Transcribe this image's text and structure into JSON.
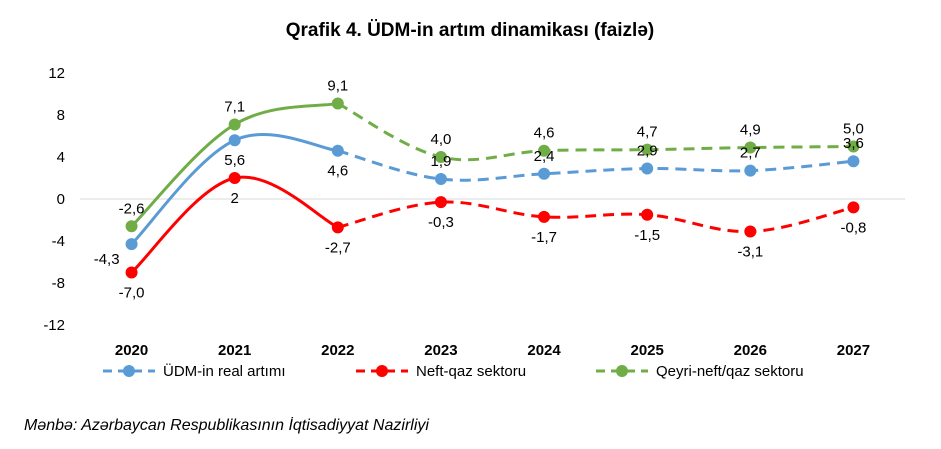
{
  "chart_data": {
    "type": "line",
    "title": "Qrafik 4. ÜDM-in artım dinamikası (faizlə)",
    "categories": [
      "2020",
      "2021",
      "2022",
      "2023",
      "2024",
      "2025",
      "2026",
      "2027"
    ],
    "ylim": [
      -12,
      12
    ],
    "yticks": [
      12,
      8,
      4,
      0,
      -4,
      -8,
      -12
    ],
    "ytick_labels": [
      "12",
      "8",
      "4",
      "0",
      "-4",
      "-8",
      "-12"
    ],
    "actual_until_index": 2,
    "grid": false,
    "legend_position": "bottom",
    "series": [
      {
        "name": "ÜDM-in real artımı",
        "color": "#5b9bd5",
        "values": [
          -4.3,
          5.6,
          4.6,
          1.9,
          2.4,
          2.9,
          2.7,
          3.6
        ],
        "labels": [
          "-4,3",
          "5,6",
          "4,6",
          "1,9",
          "2,4",
          "2,9",
          "2,7",
          "3,6"
        ],
        "label_pos": [
          "left",
          "below",
          "below",
          "above",
          "above",
          "above",
          "above",
          "above"
        ]
      },
      {
        "name": "Neft-qaz sektoru",
        "color": "#ff0000",
        "values": [
          -7.0,
          2.0,
          -2.7,
          -0.3,
          -1.7,
          -1.5,
          -3.1,
          -0.8
        ],
        "labels": [
          "-7,0",
          "2",
          "-2,7",
          "-0,3",
          "-1,7",
          "-1,5",
          "-3,1",
          "-0,8"
        ],
        "label_pos": [
          "below",
          "below",
          "below",
          "below",
          "below",
          "below",
          "below",
          "below"
        ]
      },
      {
        "name": "Qeyri-neft/qaz sektoru",
        "color": "#70ad47",
        "values": [
          -2.6,
          7.1,
          9.1,
          4.0,
          4.6,
          4.7,
          4.9,
          5.0
        ],
        "labels": [
          "-2,6",
          "7,1",
          "9,1",
          "4,0",
          "4,6",
          "4,7",
          "4,9",
          "5,0"
        ],
        "label_pos": [
          "above",
          "above",
          "above",
          "above",
          "above",
          "above",
          "above",
          "above"
        ]
      }
    ]
  },
  "source": "Mənbə: Azərbaycan Respublikasının İqtisadiyyat Nazirliyi"
}
